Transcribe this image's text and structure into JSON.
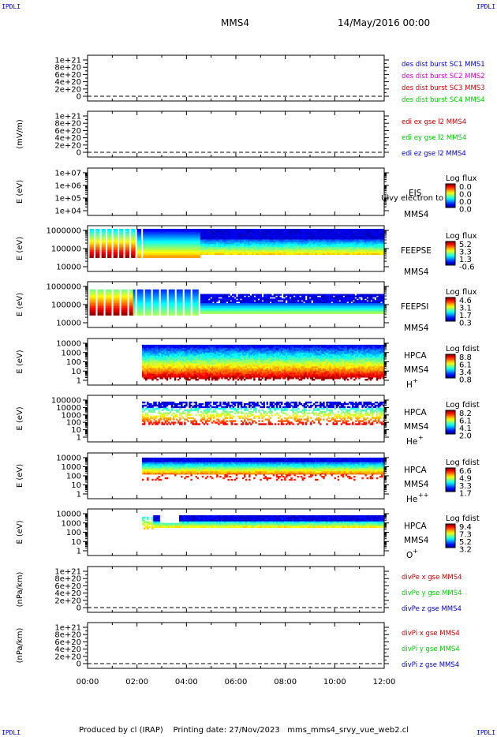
{
  "header": {
    "corner_label": "IPDLI",
    "spacecraft": "MMS4",
    "datetime": "14/May/2016 00:00"
  },
  "footer": {
    "produced_by": "Produced by cl (IRAP)",
    "printing_date": "Printing date: 27/Nov/2023",
    "script_name": "mms_mms4_srvy_vue_web2.cl"
  },
  "time_axis": {
    "ticks": [
      "00:00",
      "02:00",
      "04:00",
      "06:00",
      "08:00",
      "10:00",
      "12:00"
    ],
    "range_hours": [
      0,
      12
    ]
  },
  "colors": {
    "blue": "#0000cc",
    "red": "#cc0000",
    "green": "#00cc00",
    "magenta": "#cc00cc"
  },
  "chart_data": [
    {
      "type": "line",
      "id": "des_dist_burst",
      "ylabel": "",
      "yticks": [
        "1e+21",
        "8e+20",
        "6e+20",
        "4e+20",
        "2e+20",
        "0"
      ],
      "ylim": [
        0,
        1e+21
      ],
      "grid": false,
      "zero_line": true,
      "series": [
        {
          "name": "des dist burst SC1 MMS1",
          "color": "#0000cc",
          "values": []
        },
        {
          "name": "des dist burst SC2 MMS2",
          "color": "#cc00cc",
          "values": []
        },
        {
          "name": "des dist burst SC3 MMS3",
          "color": "#cc0000",
          "values": []
        },
        {
          "name": "des dist burst SC4 MMS4",
          "color": "#00cc00",
          "values": []
        }
      ]
    },
    {
      "type": "line",
      "id": "edi_e",
      "ylabel": "(mV/m)",
      "yticks": [
        "1e+21",
        "8e+20",
        "6e+20",
        "4e+20",
        "2e+20",
        "0"
      ],
      "ylim": [
        0,
        1e+21
      ],
      "grid": false,
      "zero_line": true,
      "series": [
        {
          "name": "edi ex gse l2 MMS4",
          "color": "#cc0000",
          "values": []
        },
        {
          "name": "edi ey gse l2 MMS4",
          "color": "#00cc00",
          "values": []
        },
        {
          "name": "edi ez gse l2 MMS4",
          "color": "#0000cc",
          "values": []
        }
      ]
    },
    {
      "type": "heatmap",
      "id": "eis",
      "ylabel": "E (eV)",
      "yticks": [
        "1e+07",
        "1e+06",
        "1e+05",
        "1e+04"
      ],
      "log_scale": true,
      "labels": [
        "EIS",
        "MMS4"
      ],
      "overlay_text": "Ulvy electron to",
      "colorbar": {
        "title": "Log flux",
        "ticks": [
          "0.0",
          "0.0",
          "0.0",
          "0.0"
        ]
      },
      "data": "none"
    },
    {
      "type": "heatmap",
      "id": "feeps_e",
      "ylabel": "E (eV)",
      "yticks": [
        "1000000",
        "100000",
        "10000"
      ],
      "log_scale": true,
      "labels": [
        "FEEPSE",
        "MMS4"
      ],
      "colorbar": {
        "title": "Log flux",
        "ticks": [
          "5.2",
          "3.3",
          "1.3",
          "-0.6"
        ]
      },
      "data": {
        "start_h": 0,
        "end_h": 12,
        "pattern": "spiky_early_then_blue_top_band"
      }
    },
    {
      "type": "heatmap",
      "id": "feeps_i",
      "ylabel": "E (eV)",
      "yticks": [
        "1000000",
        "100000",
        "10000"
      ],
      "log_scale": true,
      "labels": [
        "FEEPSI",
        "MMS4"
      ],
      "colorbar": {
        "title": "Log flux",
        "ticks": [
          "4.6",
          "3.1",
          "1.7",
          "0.3"
        ]
      },
      "data": {
        "start_h": 0,
        "end_h": 12,
        "pattern": "warm_early_then_blue_band"
      }
    },
    {
      "type": "heatmap",
      "id": "hpca_h",
      "ylabel": "E (eV)",
      "yticks": [
        "10000",
        "1000",
        "100",
        "10",
        "1"
      ],
      "log_scale": true,
      "labels": [
        "HPCA",
        "MMS4",
        "H",
        "+"
      ],
      "colorbar": {
        "title": "Log fdist",
        "ticks": [
          "8.8",
          "6.1",
          "3.4",
          "0.8"
        ]
      },
      "data": {
        "start_h": 2.2,
        "end_h": 12,
        "pattern": "full_gradient"
      }
    },
    {
      "type": "heatmap",
      "id": "hpca_he",
      "ylabel": "E (eV)",
      "yticks": [
        "100000",
        "10000",
        "1000",
        "100",
        "10",
        "1"
      ],
      "log_scale": true,
      "labels": [
        "HPCA",
        "MMS4",
        "He",
        "+"
      ],
      "colorbar": {
        "title": "Log fdist",
        "ticks": [
          "8.2",
          "6.1",
          "4.1",
          "2.0"
        ]
      },
      "data": {
        "start_h": 2.2,
        "end_h": 12,
        "pattern": "sparse"
      }
    },
    {
      "type": "heatmap",
      "id": "hpca_hepp",
      "ylabel": "E (eV)",
      "yticks": [
        "10000",
        "1000",
        "100",
        "10",
        "1"
      ],
      "log_scale": true,
      "labels": [
        "HPCA",
        "MMS4",
        "He",
        "++"
      ],
      "colorbar": {
        "title": "Log fdist",
        "ticks": [
          "6.6",
          "4.9",
          "3.3",
          "1.7"
        ]
      },
      "data": {
        "start_h": 2.2,
        "end_h": 12,
        "pattern": "band"
      }
    },
    {
      "type": "heatmap",
      "id": "hpca_o",
      "ylabel": "E (eV)",
      "yticks": [
        "10000",
        "1000",
        "100",
        "10",
        "1"
      ],
      "log_scale": true,
      "labels": [
        "HPCA",
        "MMS4",
        "O",
        "+"
      ],
      "colorbar": {
        "title": "Log fdist",
        "ticks": [
          "9.4",
          "7.3",
          "5.2",
          "3.2"
        ]
      },
      "data": {
        "start_h": 2.2,
        "end_h": 12,
        "pattern": "band_sparse"
      }
    },
    {
      "type": "line",
      "id": "divpe",
      "ylabel": "(nPa/km)",
      "yticks": [
        "1e+21",
        "8e+20",
        "6e+20",
        "4e+20",
        "2e+20",
        "0"
      ],
      "ylim": [
        0,
        1e+21
      ],
      "grid": false,
      "zero_line": true,
      "series": [
        {
          "name": "divPe x gse MMS4",
          "color": "#cc0000",
          "values": []
        },
        {
          "name": "divPe y gse MMS4",
          "color": "#00cc00",
          "values": []
        },
        {
          "name": "divPe z gse MMS4",
          "color": "#0000cc",
          "values": []
        }
      ]
    },
    {
      "type": "line",
      "id": "divpi",
      "ylabel": "(nPa/km)",
      "yticks": [
        "1e+21",
        "8e+20",
        "6e+20",
        "4e+20",
        "2e+20",
        "0"
      ],
      "ylim": [
        0,
        1e+21
      ],
      "grid": false,
      "zero_line": true,
      "series": [
        {
          "name": "divPi x gse MMS4",
          "color": "#cc0000",
          "values": []
        },
        {
          "name": "divPi y gse MMS4",
          "color": "#00cc00",
          "values": []
        },
        {
          "name": "divPi z gse MMS4",
          "color": "#0000cc",
          "values": []
        }
      ]
    }
  ]
}
